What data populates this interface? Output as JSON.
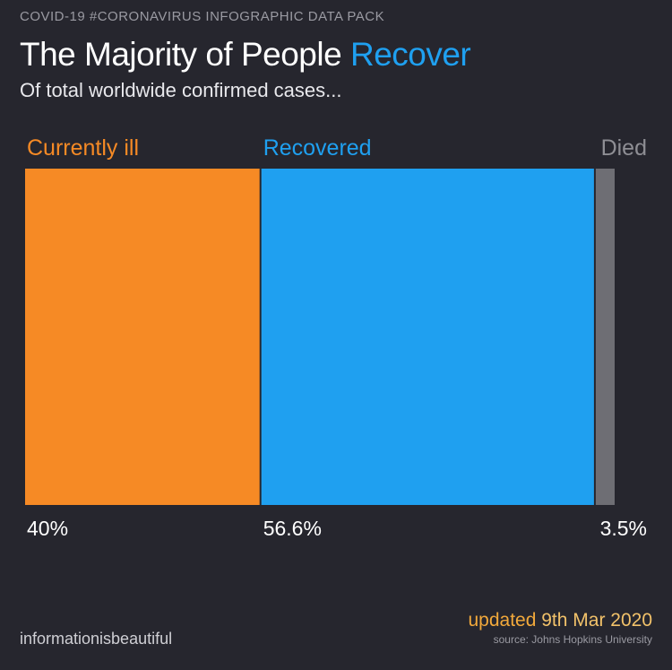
{
  "header": {
    "tag": "COVID-19 #CORONAVIRUS INFOGRAPHIC DATA PACK",
    "title_main": "The Majority of People",
    "title_accent": "Recover",
    "subtitle": "Of total worldwide confirmed cases..."
  },
  "chart_data": {
    "type": "bar",
    "orientation": "horizontal-stacked",
    "title": "The Majority of People Recover",
    "categories": [
      "Currently ill",
      "Recovered",
      "Died"
    ],
    "values": [
      40,
      56.6,
      3.5
    ],
    "value_labels": [
      "40%",
      "56.6%",
      "3.5%"
    ],
    "unit": "%",
    "colors": [
      "#f68a25",
      "#1fa0f0",
      "#6e6e74"
    ],
    "label_colors": [
      "#f68a25",
      "#1fa0f0",
      "#8e8e94"
    ],
    "grid": false,
    "legend": "labels above segments"
  },
  "footer": {
    "brand": "informationisbeautiful",
    "updated_prefix": "updated",
    "updated_date": "9th Mar 2020",
    "source": "source: Johns Hopkins University",
    "updated_color": "#f2a93b"
  }
}
